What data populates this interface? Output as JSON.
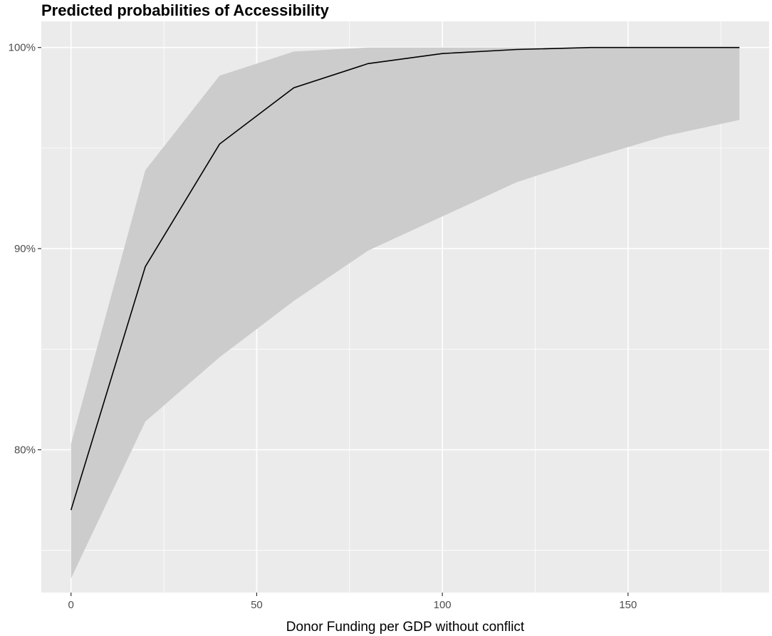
{
  "chart_data": {
    "type": "line",
    "title": "Predicted probabilities of Accessibility",
    "xlabel": "Donor Funding per GDP without conflict",
    "ylabel": "",
    "xlim": [
      -8,
      188
    ],
    "ylim": [
      72.9,
      101.3
    ],
    "x_ticks": [
      0,
      50,
      100,
      150
    ],
    "x_tick_labels": [
      "0",
      "50",
      "100",
      "150"
    ],
    "x_minor_ticks": [
      25,
      75,
      125,
      175
    ],
    "y_ticks": [
      80,
      90,
      100
    ],
    "y_tick_labels": [
      "80%",
      "90%",
      "100%"
    ],
    "y_minor_ticks": [
      75,
      85,
      95
    ],
    "grid": true,
    "legend": "none",
    "colors": {
      "panel": "#ebebeb",
      "grid": "#ffffff",
      "ribbon": "#cccccc",
      "line": "#000000"
    },
    "series": [
      {
        "x": [
          0,
          20,
          40,
          60,
          80,
          100,
          120,
          140,
          160,
          180
        ],
        "y": [
          77.0,
          89.1,
          95.2,
          98.0,
          99.2,
          99.7,
          99.9,
          100.0,
          100.0,
          100.0
        ],
        "lower": [
          73.6,
          81.4,
          84.6,
          87.4,
          89.9,
          91.6,
          93.3,
          94.5,
          95.6,
          96.4
        ],
        "upper": [
          80.3,
          93.9,
          98.6,
          99.8,
          100.0,
          100.0,
          100.0,
          100.0,
          100.0,
          100.0
        ]
      }
    ]
  }
}
